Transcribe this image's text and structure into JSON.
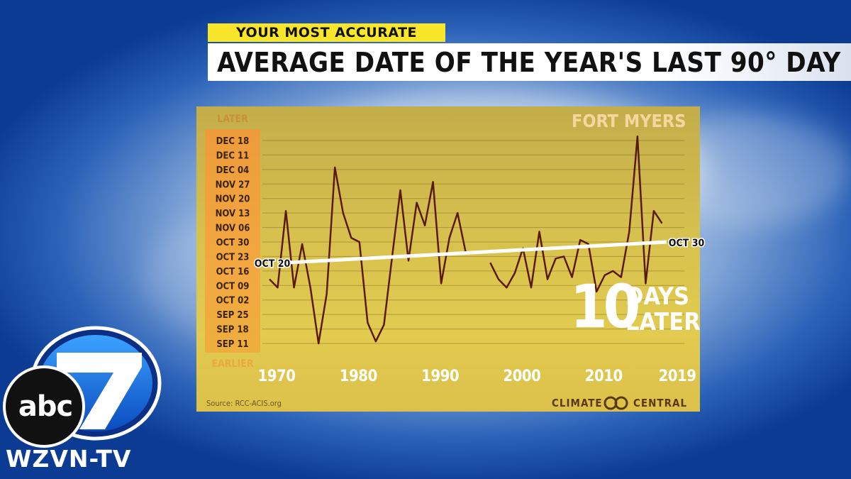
{
  "header": {
    "tag": "YOUR MOST ACCURATE",
    "title": "AVERAGE DATE OF THE YEAR'S LAST 90° DAY"
  },
  "panel": {
    "location": "FORT MYERS",
    "later_label": "LATER",
    "earlier_label": "EARLIER",
    "source": "Source: RCC-ACIS.org",
    "credit_left": "CLIMATE",
    "credit_right": "CENTRAL",
    "callout_number": "10",
    "callout_word1": "DAYS",
    "callout_word2": "LATER",
    "trend_start_label": "OCT 20",
    "trend_end_label": "OCT 30"
  },
  "station": {
    "logo_text": "abc",
    "logo_number": "7",
    "call_sign": "WZVN-TV"
  },
  "colors": {
    "line": "#5a1a10",
    "trend": "#ffffff",
    "yellow_tag": "#f7e629",
    "axis_box": "#f0a23d"
  },
  "chart_data": {
    "type": "line",
    "title": "AVERAGE DATE OF THE YEAR'S LAST 90° DAY",
    "subtitle": "FORT MYERS",
    "xlabel": "",
    "ylabel": "",
    "y_tick_labels": [
      "DEC 18",
      "DEC 11",
      "DEC 04",
      "NOV 27",
      "NOV 20",
      "NOV 13",
      "NOV 06",
      "OCT 30",
      "OCT 23",
      "OCT 16",
      "OCT 09",
      "OCT 02",
      "SEP 25",
      "SEP 18",
      "SEP 11"
    ],
    "x_tick_labels": [
      "1970",
      "1980",
      "1990",
      "2000",
      "2010",
      "2019"
    ],
    "x_ticks": [
      1970,
      1980,
      1990,
      2000,
      2010,
      2019
    ],
    "xlim": [
      1970,
      2019
    ],
    "ylim": [
      "2019-09-11",
      "2019-12-18"
    ],
    "grid": true,
    "series": [
      {
        "values": [
          {
            "x": 1970,
            "y": "2019-10-12"
          },
          {
            "x": 1971,
            "y": "2019-10-08"
          },
          {
            "x": 1972,
            "y": "2019-11-14"
          },
          {
            "x": 1973,
            "y": "2019-10-08"
          },
          {
            "x": 1974,
            "y": "2019-10-29"
          },
          {
            "x": 1975,
            "y": "2019-10-08"
          },
          {
            "x": 1976,
            "y": "2019-09-11"
          },
          {
            "x": 1977,
            "y": "2019-10-05"
          },
          {
            "x": 1978,
            "y": "2019-12-05"
          },
          {
            "x": 1979,
            "y": "2019-11-13"
          },
          {
            "x": 1980,
            "y": "2019-11-01"
          },
          {
            "x": 1981,
            "y": "2019-10-30"
          },
          {
            "x": 1982,
            "y": "2019-09-21"
          },
          {
            "x": 1983,
            "y": "2019-09-12"
          },
          {
            "x": 1984,
            "y": "2019-09-20"
          },
          {
            "x": 1985,
            "y": "2019-10-23"
          },
          {
            "x": 1986,
            "y": "2019-11-24"
          },
          {
            "x": 1987,
            "y": "2019-10-21"
          },
          {
            "x": 1988,
            "y": "2019-11-18"
          },
          {
            "x": 1989,
            "y": "2019-11-07"
          },
          {
            "x": 1990,
            "y": "2019-11-28"
          },
          {
            "x": 1991,
            "y": "2019-10-10"
          },
          {
            "x": 1992,
            "y": "2019-11-01"
          },
          {
            "x": 1993,
            "y": "2019-11-13"
          },
          {
            "x": 1994,
            "y": "2019-10-25"
          },
          {
            "x": 1997,
            "y": "2019-10-20"
          },
          {
            "x": 1998,
            "y": "2019-10-12"
          },
          {
            "x": 1999,
            "y": "2019-10-08"
          },
          {
            "x": 2000,
            "y": "2019-10-15"
          },
          {
            "x": 2001,
            "y": "2019-10-27"
          },
          {
            "x": 2002,
            "y": "2019-10-08"
          },
          {
            "x": 2003,
            "y": "2019-11-04"
          },
          {
            "x": 2004,
            "y": "2019-10-12"
          },
          {
            "x": 2005,
            "y": "2019-10-22"
          },
          {
            "x": 2006,
            "y": "2019-10-23"
          },
          {
            "x": 2007,
            "y": "2019-10-13"
          },
          {
            "x": 2008,
            "y": "2019-10-31"
          },
          {
            "x": 2009,
            "y": "2019-10-29"
          },
          {
            "x": 2010,
            "y": "2019-10-06"
          },
          {
            "x": 2011,
            "y": "2019-10-14"
          },
          {
            "x": 2012,
            "y": "2019-10-16"
          },
          {
            "x": 2013,
            "y": "2019-10-13"
          },
          {
            "x": 2014,
            "y": "2019-11-04"
          },
          {
            "x": 2015,
            "y": "2019-12-20"
          },
          {
            "x": 2016,
            "y": "2019-10-10"
          },
          {
            "x": 2017,
            "y": "2019-11-14"
          },
          {
            "x": 2018,
            "y": "2019-11-08"
          }
        ]
      }
    ],
    "trend": [
      {
        "x": 1970,
        "y": "2019-10-20"
      },
      {
        "x": 2019,
        "y": "2019-10-30"
      }
    ]
  }
}
